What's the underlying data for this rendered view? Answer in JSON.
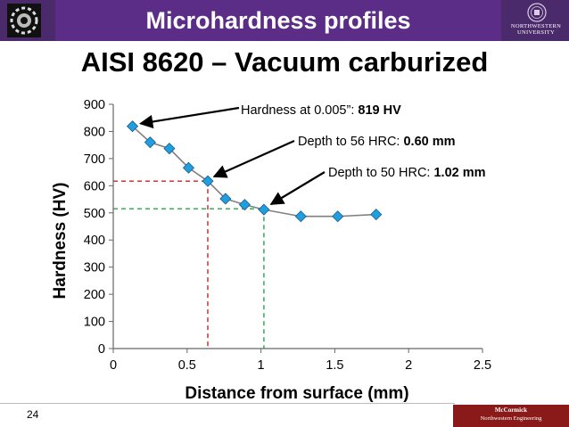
{
  "header": {
    "title": "Microhardness profiles",
    "left_logo_icon": "gear-emblem-icon",
    "right_logo_icon": "university-seal-icon",
    "right_logo_text": "NORTHWESTERN UNIVERSITY",
    "bar_color": "#4a2a6a",
    "title_box_color": "#5b2d86"
  },
  "slide": {
    "title": "AISI 8620 – Vacuum carburized",
    "number": "24"
  },
  "footer": {
    "logo_name": "McCormick",
    "logo_sub": "Northwestern Engineering",
    "logo_color": "#8a1a1a"
  },
  "chart_data": {
    "type": "line",
    "xlabel": "Distance from surface (mm)",
    "ylabel": "Hardness (HV)",
    "xlim": [
      0,
      2.5
    ],
    "ylim": [
      0,
      900
    ],
    "xticks": [
      0,
      0.5,
      1,
      1.5,
      2,
      2.5
    ],
    "xtick_labels": [
      "0",
      "0.5",
      "1",
      "1.5",
      "2",
      "2.5"
    ],
    "yticks": [
      0,
      100,
      200,
      300,
      400,
      500,
      600,
      700,
      800,
      900
    ],
    "ytick_labels": [
      "0",
      "100",
      "200",
      "300",
      "400",
      "500",
      "600",
      "700",
      "800",
      "900"
    ],
    "grid": false,
    "marker": "diamond",
    "line_color": "#808080",
    "marker_color": "#1f9ee0",
    "series": [
      {
        "x": [
          0.13,
          0.25,
          0.38,
          0.51,
          0.64,
          0.76,
          0.89,
          1.02,
          1.27,
          1.52,
          1.78
        ],
        "y": [
          819,
          760,
          737,
          666,
          617,
          552,
          530,
          512,
          487,
          487,
          494
        ]
      }
    ],
    "reference_lines": [
      {
        "x": 0.64,
        "y": 617,
        "color": "#cc2222"
      },
      {
        "x": 1.02,
        "y": 515,
        "color": "#22aa44"
      }
    ],
    "annotations": [
      {
        "text": "Hardness at 0.005”: ",
        "value": "819 HV",
        "point": [
          0.13,
          819
        ]
      },
      {
        "text": "Depth to 56 HRC: ",
        "value": "0.60 mm",
        "point": [
          0.64,
          617
        ]
      },
      {
        "text": "Depth to 50 HRC: ",
        "value": "1.02 mm",
        "point": [
          1.02,
          512
        ]
      }
    ]
  }
}
